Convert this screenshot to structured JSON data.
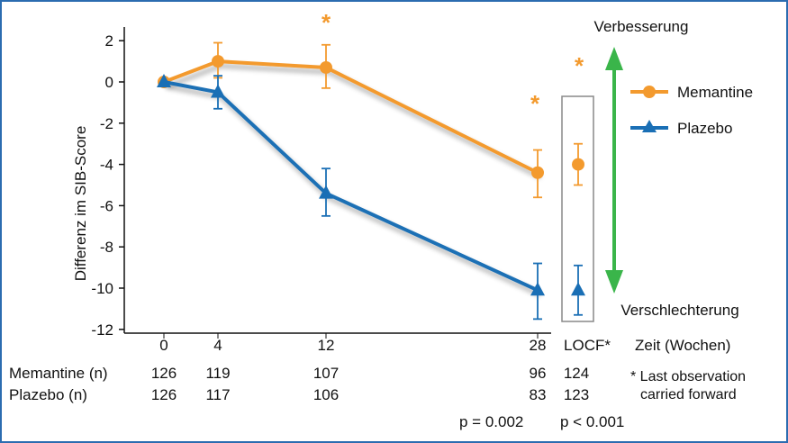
{
  "chart_data": {
    "type": "line",
    "title": "",
    "ylabel": "Differenz im SIB-Score",
    "xlabel": "Zeit (Wochen)",
    "ylim": [
      -12,
      2.5
    ],
    "yticks": [
      2,
      0,
      -2,
      -4,
      -6,
      -8,
      -10,
      -12
    ],
    "xticks": [
      "0",
      "4",
      "12",
      "28",
      "LOCF*"
    ],
    "legend_position": "right",
    "series": [
      {
        "name": "Memantine",
        "color": "#f39a2e",
        "marker": "circle",
        "x": [
          0,
          4,
          12,
          28
        ],
        "values": [
          0,
          1.0,
          0.7,
          -4.4
        ],
        "err_low": [
          0,
          0.8,
          1.0,
          1.2
        ],
        "err_high": [
          0,
          0.9,
          1.1,
          1.1
        ],
        "locf": -4.0,
        "locf_err": [
          1.0,
          1.0
        ]
      },
      {
        "name": "Plazebo",
        "color": "#1a6fb5",
        "marker": "triangle",
        "x": [
          0,
          4,
          12,
          28
        ],
        "values": [
          0,
          -0.5,
          -5.4,
          -10.1
        ],
        "err_low": [
          0,
          0.8,
          1.1,
          1.4
        ],
        "err_high": [
          0,
          0.8,
          1.2,
          1.3
        ],
        "locf": -10.1,
        "locf_err": [
          1.2,
          1.2
        ]
      }
    ],
    "significance_markers": [
      {
        "x": "12",
        "label": "*"
      },
      {
        "x": "28",
        "label": "*"
      },
      {
        "x": "LOCF*",
        "label": "*"
      }
    ],
    "arrow_labels": {
      "up": "Verbesserung",
      "down": "Verschlechterung"
    },
    "arrow_color": "#3ab54a",
    "n_table": {
      "rows": [
        {
          "label": "Memantine (n)",
          "values": [
            "126",
            "119",
            "107",
            "96",
            "124"
          ]
        },
        {
          "label": "Plazebo (n)",
          "values": [
            "126",
            "117",
            "106",
            "83",
            "123"
          ]
        }
      ]
    },
    "footnote": [
      "* Last observation",
      "carried forward"
    ],
    "p_values": [
      "p = 0.002",
      "p < 0.001"
    ]
  }
}
